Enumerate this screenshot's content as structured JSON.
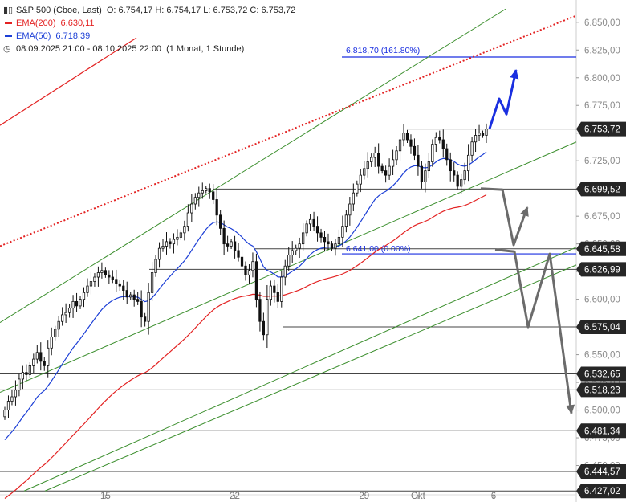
{
  "legend": {
    "instrument": "S&P 500 (Cboe, Last)",
    "ohlc": "O: 6.754,17   H: 6.754,17   L: 6.753,72   C: 6.753,72",
    "ema200_label": "EMA(200)",
    "ema200_value": "6.630,11",
    "ema50_label": "EMA(50)",
    "ema50_value": "6.718,39",
    "period": "08.09.2025 21:00 - 08.10.2025 22:00",
    "period_detail": "(1 Monat, 1 Stunde)"
  },
  "colors": {
    "candle": "#111111",
    "ema200": "#e32222",
    "ema50": "#1c3fd6",
    "channel": "#3c8f2e",
    "level_line": "#444444",
    "projection_up": "#1a2fe0",
    "projection_down": "#6b6b6b",
    "price_badge": "#262626"
  },
  "chart_data": {
    "type": "candlestick",
    "ylim": [
      6425,
      6860
    ],
    "y_ticks": [
      "6.850,00",
      "6.825,00",
      "6.800,00",
      "6.775,00",
      "6.750,00",
      "6.725,00",
      "6.700,00",
      "6.675,00",
      "6.650,00",
      "6.625,00",
      "6.600,00",
      "6.575,00",
      "6.550,00",
      "6.525,00",
      "6.500,00",
      "6.475,00",
      "6.450,00"
    ],
    "x_ticks": [
      {
        "label": "15",
        "bar": 28
      },
      {
        "label": "22",
        "bar": 64
      },
      {
        "label": "29",
        "bar": 100
      },
      {
        "label": "Okt",
        "bar": 115
      },
      {
        "label": "6",
        "bar": 136
      }
    ],
    "close_series_approx": [
      6500,
      6508,
      6512,
      6518,
      6528,
      6534,
      6532,
      6540,
      6546,
      6552,
      6544,
      6540,
      6556,
      6566,
      6573,
      6580,
      6586,
      6588,
      6592,
      6598,
      6594,
      6600,
      6606,
      6612,
      6616,
      6620,
      6624,
      6626,
      6622,
      6620,
      6618,
      6614,
      6612,
      6608,
      6602,
      6604,
      6600,
      6598,
      6584,
      6580,
      6606,
      6624,
      6636,
      6646,
      6648,
      6652,
      6650,
      6654,
      6656,
      6660,
      6666,
      6678,
      6686,
      6692,
      6696,
      6698,
      6700,
      6697,
      6690,
      6676,
      6664,
      6650,
      6648,
      6652,
      6644,
      6638,
      6630,
      6622,
      6626,
      6634,
      6600,
      6580,
      6568,
      6600,
      6612,
      6606,
      6598,
      6620,
      6630,
      6640,
      6644,
      6646,
      6650,
      6660,
      6668,
      6672,
      6666,
      6660,
      6656,
      6652,
      6650,
      6646,
      6650,
      6656,
      6666,
      6676,
      6686,
      6696,
      6704,
      6712,
      6718,
      6724,
      6728,
      6732,
      6720,
      6716,
      6712,
      6720,
      6726,
      6734,
      6744,
      6750,
      6744,
      6738,
      6730,
      6720,
      6706,
      6716,
      6724,
      6740,
      6746,
      6744,
      6736,
      6726,
      6716,
      6712,
      6702,
      6708,
      6716,
      6730,
      6742,
      6748,
      6750,
      6748,
      6753.72
    ],
    "series": [
      {
        "name": "EMA(200)",
        "last": "6.630,11"
      },
      {
        "name": "EMA(50)",
        "last": "6.718,39"
      }
    ],
    "price_levels": [
      "6.753,72",
      "6.699,52",
      "6.645,58",
      "6.626,99",
      "6.575,04",
      "6.532,65",
      "6.518,23",
      "6.481,34",
      "6.444,57",
      "6.427,02"
    ],
    "annotations": [
      {
        "text": "6.818,70 (161.80%)",
        "value": 6818.7
      },
      {
        "text": "6.641,00 (0.00%)",
        "value": 6641.0
      }
    ]
  }
}
